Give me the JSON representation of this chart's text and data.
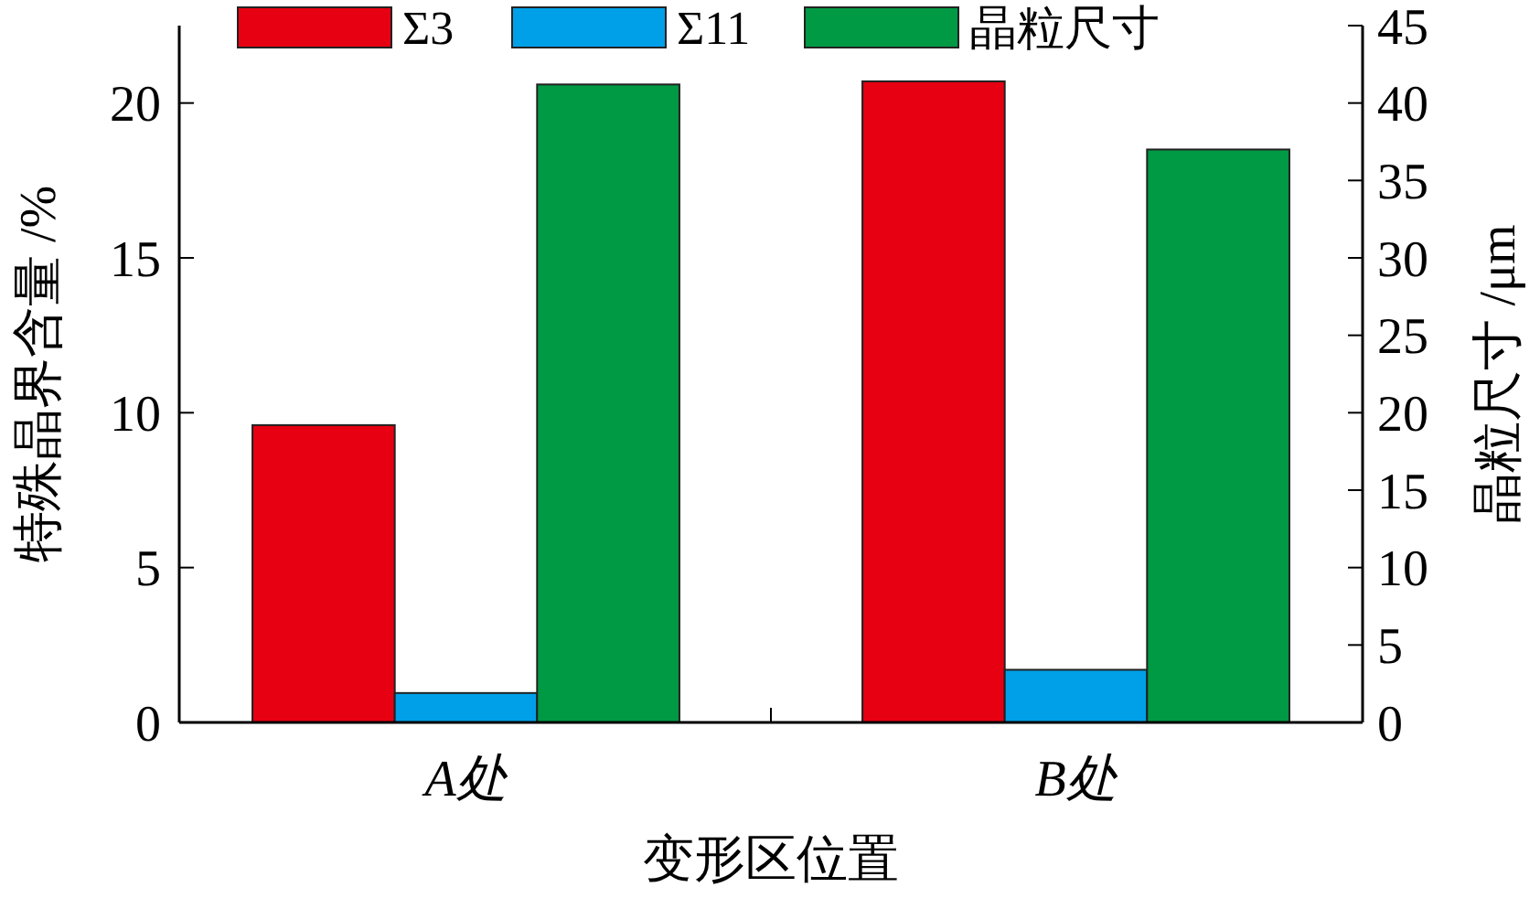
{
  "chart_data": {
    "type": "bar",
    "xlabel": "变形区位置",
    "ylabel": "特殊晶界含量 /%",
    "y2label": "晶粒尺寸 /μm",
    "categories": [
      "A处",
      "B处"
    ],
    "series": [
      {
        "name": "Σ3",
        "color": "#e60012",
        "values": [
          9.6,
          20.7
        ]
      },
      {
        "name": "Σ11",
        "color": "#00a0e9",
        "values": [
          0.95,
          1.7
        ]
      },
      {
        "name": "晶粒尺寸",
        "color": "#009944",
        "values": [
          41.2,
          37.0
        ],
        "axis": "y2"
      }
    ],
    "ylim": [
      0,
      22.5
    ],
    "yticks": [
      0,
      5,
      10,
      15,
      20
    ],
    "y2lim": [
      0,
      45
    ],
    "y2ticks": [
      0,
      5,
      10,
      15,
      20,
      25,
      30,
      35,
      40,
      45
    ],
    "legend": "top",
    "grid": false
  }
}
